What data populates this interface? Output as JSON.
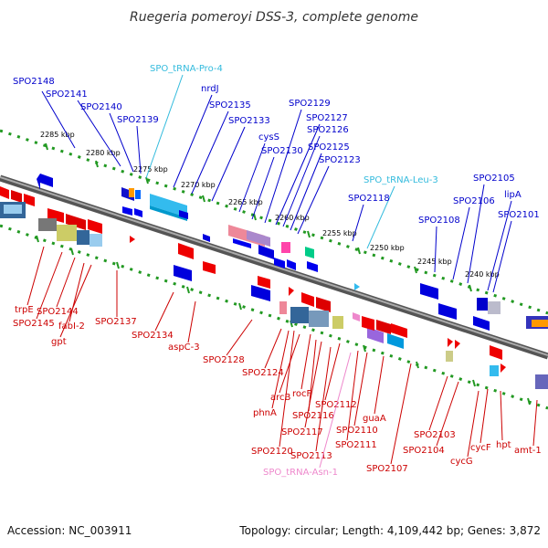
{
  "title": "Ruegeria pomeroyi DSS-3, complete genome",
  "footer": {
    "accession": "Accession: NC_003911",
    "summary": "Topology: circular; Length: 4,109,442 bp; Genes: 3,872"
  },
  "colors": {
    "forward_label": "#0000cc",
    "reverse_label": "#cc0000",
    "trna_forward": "#33bbdd",
    "trna_reverse": "#ee88cc",
    "backbone": "#808080",
    "dotted_ring": "#229922"
  },
  "ticks": [
    "2285 kbp",
    "2280 kbp",
    "2275 kbp",
    "2270 kbp",
    "2265 kbp",
    "2260 kbp",
    "2255 kbp",
    "2250 kbp",
    "2245 kbp",
    "2240 kbp"
  ],
  "genes_top": [
    {
      "text": "SPO2148",
      "kind": "gene"
    },
    {
      "text": "SPO2141",
      "kind": "gene"
    },
    {
      "text": "SPO2140",
      "kind": "gene"
    },
    {
      "text": "SPO2139",
      "kind": "gene"
    },
    {
      "text": "SPO_tRNA-Pro-4",
      "kind": "trna"
    },
    {
      "text": "nrdJ",
      "kind": "gene"
    },
    {
      "text": "SPO2135",
      "kind": "gene"
    },
    {
      "text": "SPO2133",
      "kind": "gene"
    },
    {
      "text": "cysS",
      "kind": "gene"
    },
    {
      "text": "SPO2130",
      "kind": "gene"
    },
    {
      "text": "SPO2129",
      "kind": "gene"
    },
    {
      "text": "SPO2127",
      "kind": "gene"
    },
    {
      "text": "SPO2126",
      "kind": "gene"
    },
    {
      "text": "SPO2125",
      "kind": "gene"
    },
    {
      "text": "SPO2123",
      "kind": "gene"
    },
    {
      "text": "SPO_tRNA-Leu-3",
      "kind": "trna"
    },
    {
      "text": "SPO2118",
      "kind": "gene"
    },
    {
      "text": "SPO2108",
      "kind": "gene"
    },
    {
      "text": "SPO2106",
      "kind": "gene"
    },
    {
      "text": "SPO2105",
      "kind": "gene"
    },
    {
      "text": "lipA",
      "kind": "gene"
    },
    {
      "text": "SPO2101",
      "kind": "gene"
    }
  ],
  "genes_bottom": [
    {
      "text": "trpE",
      "kind": "gene"
    },
    {
      "text": "SPO2145",
      "kind": "gene"
    },
    {
      "text": "SPO2144",
      "kind": "gene"
    },
    {
      "text": "fabI-2",
      "kind": "gene"
    },
    {
      "text": "gpt",
      "kind": "gene"
    },
    {
      "text": "SPO2137",
      "kind": "gene"
    },
    {
      "text": "SPO2134",
      "kind": "gene"
    },
    {
      "text": "aspC-3",
      "kind": "gene"
    },
    {
      "text": "SPO2128",
      "kind": "gene"
    },
    {
      "text": "SPO2124",
      "kind": "gene"
    },
    {
      "text": "arcB",
      "kind": "gene"
    },
    {
      "text": "rocF",
      "kind": "gene"
    },
    {
      "text": "phnA",
      "kind": "gene"
    },
    {
      "text": "SPO2116",
      "kind": "gene"
    },
    {
      "text": "SPO2117",
      "kind": "gene"
    },
    {
      "text": "SPO2112",
      "kind": "gene"
    },
    {
      "text": "SPO2120",
      "kind": "gene"
    },
    {
      "text": "SPO2113",
      "kind": "gene"
    },
    {
      "text": "SPO2111",
      "kind": "gene"
    },
    {
      "text": "SPO2110",
      "kind": "gene"
    },
    {
      "text": "guaA",
      "kind": "gene"
    },
    {
      "text": "SPO_tRNA-Asn-1",
      "kind": "trna"
    },
    {
      "text": "SPO2107",
      "kind": "gene"
    },
    {
      "text": "SPO2103",
      "kind": "gene"
    },
    {
      "text": "SPO2104",
      "kind": "gene"
    },
    {
      "text": "cycG",
      "kind": "gene"
    },
    {
      "text": "cycF",
      "kind": "gene"
    },
    {
      "text": "hpt",
      "kind": "gene"
    },
    {
      "text": "amt-1",
      "kind": "gene"
    }
  ]
}
